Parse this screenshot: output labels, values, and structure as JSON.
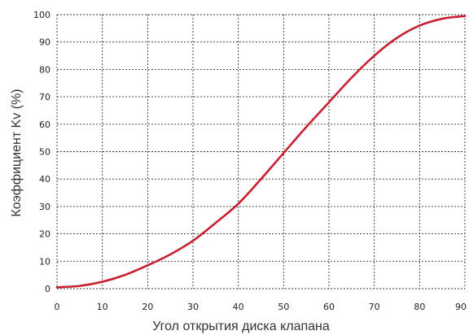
{
  "chart_data": {
    "type": "line",
    "title": "",
    "xlabel": "Угол открытия диска клапана",
    "ylabel": "Коэффициент Kv (%)",
    "xlim": [
      0,
      90
    ],
    "ylim": [
      0,
      100
    ],
    "x_ticks": [
      0,
      10,
      20,
      30,
      40,
      50,
      60,
      70,
      80,
      90
    ],
    "y_ticks": [
      0,
      10,
      20,
      30,
      40,
      50,
      60,
      70,
      80,
      90,
      100
    ],
    "grid": true,
    "legend": "none",
    "series": [
      {
        "color": "#c8202f",
        "x": [
          0,
          5,
          10,
          15,
          20,
          25,
          30,
          35,
          40,
          45,
          50,
          55,
          60,
          65,
          70,
          75,
          80,
          85,
          90
        ],
        "y": [
          0.5,
          1,
          2.5,
          5,
          8.5,
          12.5,
          17.5,
          24,
          31,
          40,
          49.5,
          59,
          68,
          77,
          85,
          91.5,
          96,
          98.5,
          99.5
        ]
      }
    ]
  }
}
